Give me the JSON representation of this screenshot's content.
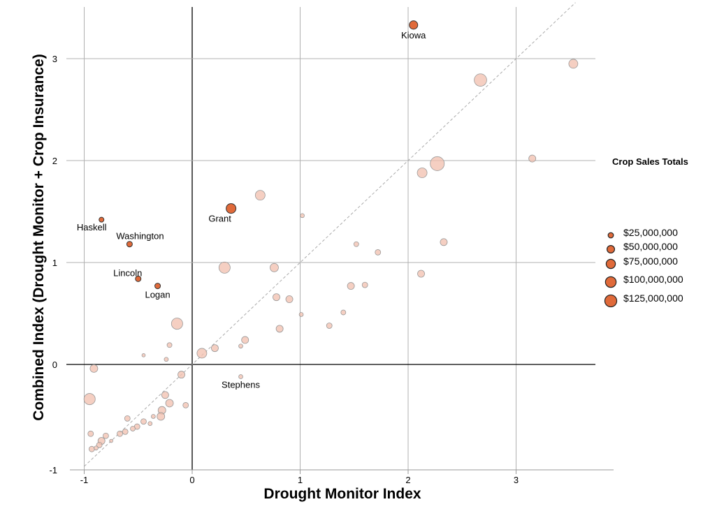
{
  "chart_data": {
    "type": "scatter",
    "xlabel": "Drought Monitor Index",
    "ylabel": "Combined Index (Drought Monitor + Crop Insurance)",
    "xlim": [
      -1.1,
      3.75
    ],
    "ylim": [
      -1,
      3.45
    ],
    "xticks": [
      -1,
      0,
      1,
      2,
      3
    ],
    "yticks": [
      -1,
      0,
      1,
      2,
      3
    ],
    "grid": true,
    "reference_line": "y = x (dashed)",
    "size_variable": "Crop Sales Totals",
    "legend": {
      "title": "Crop Sales Totals",
      "placement": "right",
      "entries": [
        {
          "label": "$25,000,000",
          "value": 25
        },
        {
          "label": "$50,000,000",
          "value": 50
        },
        {
          "label": "$75,000,000",
          "value": 75
        },
        {
          "label": "$100,000,000",
          "value": 100
        },
        {
          "label": "$125,000,000",
          "value": 125
        }
      ]
    },
    "colors": {
      "highlight": "#e06a3a",
      "other": "#f2bfae",
      "grid": "#b0b0b0",
      "axis0": "#000000"
    },
    "points": [
      {
        "name": "Kiowa",
        "x": 2.05,
        "y": 3.33,
        "size": 50,
        "highlight": true,
        "label_pos": "below"
      },
      {
        "name": "Grant",
        "x": 0.36,
        "y": 1.53,
        "size": 68,
        "highlight": true,
        "label_pos": "below-left"
      },
      {
        "name": "Haskell",
        "x": -0.84,
        "y": 1.42,
        "size": 17,
        "highlight": true,
        "label_pos": "below-left"
      },
      {
        "name": "Washington",
        "x": -0.58,
        "y": 1.18,
        "size": 22,
        "highlight": true,
        "label_pos": "above-right"
      },
      {
        "name": "Lincoln",
        "x": -0.5,
        "y": 0.84,
        "size": 22,
        "highlight": true,
        "label_pos": "above-left"
      },
      {
        "name": "Logan",
        "x": -0.32,
        "y": 0.77,
        "size": 22,
        "highlight": true,
        "label_pos": "below"
      },
      {
        "name": "Stephens",
        "x": 0.45,
        "y": -0.12,
        "size": 12,
        "highlight": false,
        "label_pos": "below"
      },
      {
        "x": 2.67,
        "y": 2.79,
        "size": 110
      },
      {
        "x": 3.53,
        "y": 2.95,
        "size": 58
      },
      {
        "x": 3.15,
        "y": 2.02,
        "size": 35
      },
      {
        "x": 2.27,
        "y": 1.97,
        "size": 140
      },
      {
        "x": 2.13,
        "y": 1.88,
        "size": 68
      },
      {
        "x": 0.63,
        "y": 1.66,
        "size": 68
      },
      {
        "x": 1.02,
        "y": 1.46,
        "size": 12
      },
      {
        "x": 1.52,
        "y": 1.18,
        "size": 17
      },
      {
        "x": 2.33,
        "y": 1.2,
        "size": 35
      },
      {
        "x": 1.72,
        "y": 1.1,
        "size": 22
      },
      {
        "x": 0.3,
        "y": 0.95,
        "size": 90
      },
      {
        "x": 0.76,
        "y": 0.95,
        "size": 50
      },
      {
        "x": 2.12,
        "y": 0.89,
        "size": 35
      },
      {
        "x": 1.47,
        "y": 0.77,
        "size": 35
      },
      {
        "x": 1.6,
        "y": 0.78,
        "size": 22
      },
      {
        "x": 0.78,
        "y": 0.66,
        "size": 35
      },
      {
        "x": 0.9,
        "y": 0.64,
        "size": 35
      },
      {
        "x": 1.4,
        "y": 0.51,
        "size": 17
      },
      {
        "x": 1.01,
        "y": 0.49,
        "size": 12
      },
      {
        "x": -0.14,
        "y": 0.4,
        "size": 90
      },
      {
        "x": 0.81,
        "y": 0.35,
        "size": 35
      },
      {
        "x": 1.27,
        "y": 0.38,
        "size": 22
      },
      {
        "x": 0.49,
        "y": 0.24,
        "size": 35
      },
      {
        "x": 0.45,
        "y": 0.18,
        "size": 12
      },
      {
        "x": 0.21,
        "y": 0.16,
        "size": 35
      },
      {
        "x": -0.21,
        "y": 0.19,
        "size": 17
      },
      {
        "x": 0.09,
        "y": 0.11,
        "size": 68
      },
      {
        "x": -0.45,
        "y": 0.09,
        "size": 8
      },
      {
        "x": -0.24,
        "y": 0.05,
        "size": 12
      },
      {
        "x": -0.91,
        "y": -0.04,
        "size": 42
      },
      {
        "x": -0.1,
        "y": -0.1,
        "size": 35
      },
      {
        "x": -0.95,
        "y": -0.34,
        "size": 90
      },
      {
        "x": -0.25,
        "y": -0.3,
        "size": 35
      },
      {
        "x": -0.21,
        "y": -0.38,
        "size": 42
      },
      {
        "x": -0.06,
        "y": -0.4,
        "size": 22
      },
      {
        "x": -0.28,
        "y": -0.45,
        "size": 42
      },
      {
        "x": -0.6,
        "y": -0.53,
        "size": 22
      },
      {
        "x": -0.29,
        "y": -0.51,
        "size": 42
      },
      {
        "x": -0.36,
        "y": -0.51,
        "size": 12
      },
      {
        "x": -0.45,
        "y": -0.56,
        "size": 22
      },
      {
        "x": -0.39,
        "y": -0.58,
        "size": 12
      },
      {
        "x": -0.51,
        "y": -0.61,
        "size": 22
      },
      {
        "x": -0.55,
        "y": -0.63,
        "size": 17
      },
      {
        "x": -0.62,
        "y": -0.66,
        "size": 22
      },
      {
        "x": -0.67,
        "y": -0.68,
        "size": 22
      },
      {
        "x": -0.8,
        "y": -0.7,
        "size": 22
      },
      {
        "x": -0.94,
        "y": -0.68,
        "size": 22
      },
      {
        "x": -0.75,
        "y": -0.75,
        "size": 8
      },
      {
        "x": -0.84,
        "y": -0.75,
        "size": 35
      },
      {
        "x": -0.86,
        "y": -0.79,
        "size": 22
      },
      {
        "x": -0.89,
        "y": -0.82,
        "size": 12
      },
      {
        "x": -0.93,
        "y": -0.83,
        "size": 22
      }
    ]
  }
}
